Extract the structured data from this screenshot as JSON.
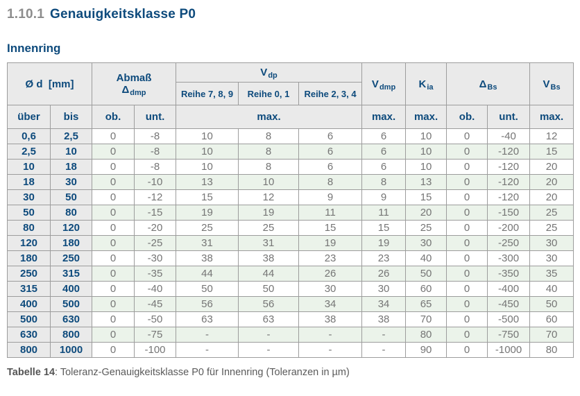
{
  "page": {
    "section_number": "1.10.1",
    "section_title": "Genauigkeitsklasse P0",
    "subtitle": "Innenring",
    "caption_label": "Tabelle 14",
    "caption_rest": ": Toleranz-Genauigkeitsklasse P0 für Innenring (Toleranzen in µm)"
  },
  "colors": {
    "heading_blue": "#0d4a7c",
    "heading_number_gray": "#8c8c8c",
    "header_bg": "#eaeaea",
    "row_alt_green": "#ebf3ea",
    "border_gray": "#9c9c9c",
    "data_text_gray": "#757575",
    "caption_gray": "#5a5a5a"
  },
  "table": {
    "header": {
      "diameter": {
        "label": "Ø d",
        "unit": "[mm]"
      },
      "abmass": {
        "line1": "Abmaß",
        "sym": "Δ",
        "sub": "dmp"
      },
      "vdp": {
        "sym": "V",
        "sub": "dp"
      },
      "reihe": [
        "Reihe 7, 8, 9",
        "Reihe 0, 1",
        "Reihe 2, 3, 4"
      ],
      "vdmp": {
        "sym": "V",
        "sub": "dmp"
      },
      "kia": {
        "sym": "K",
        "sub": "ia"
      },
      "dbs": {
        "sym": "Δ",
        "sub": "Bs"
      },
      "vbs": {
        "sym": "V",
        "sub": "Bs"
      },
      "row2": {
        "ueber": "über",
        "bis": "bis",
        "ob1": "ob.",
        "unt1": "unt.",
        "max_vdp": "max.",
        "max_vdmp": "max.",
        "max_kia": "max.",
        "ob2": "ob.",
        "unt2": "unt.",
        "max_vbs": "max."
      }
    },
    "rows": [
      [
        "0,6",
        "2,5",
        "0",
        "-8",
        "10",
        "8",
        "6",
        "6",
        "10",
        "0",
        "-40",
        "12"
      ],
      [
        "2,5",
        "10",
        "0",
        "-8",
        "10",
        "8",
        "6",
        "6",
        "10",
        "0",
        "-120",
        "15"
      ],
      [
        "10",
        "18",
        "0",
        "-8",
        "10",
        "8",
        "6",
        "6",
        "10",
        "0",
        "-120",
        "20"
      ],
      [
        "18",
        "30",
        "0",
        "-10",
        "13",
        "10",
        "8",
        "8",
        "13",
        "0",
        "-120",
        "20"
      ],
      [
        "30",
        "50",
        "0",
        "-12",
        "15",
        "12",
        "9",
        "9",
        "15",
        "0",
        "-120",
        "20"
      ],
      [
        "50",
        "80",
        "0",
        "-15",
        "19",
        "19",
        "11",
        "11",
        "20",
        "0",
        "-150",
        "25"
      ],
      [
        "80",
        "120",
        "0",
        "-20",
        "25",
        "25",
        "15",
        "15",
        "25",
        "0",
        "-200",
        "25"
      ],
      [
        "120",
        "180",
        "0",
        "-25",
        "31",
        "31",
        "19",
        "19",
        "30",
        "0",
        "-250",
        "30"
      ],
      [
        "180",
        "250",
        "0",
        "-30",
        "38",
        "38",
        "23",
        "23",
        "40",
        "0",
        "-300",
        "30"
      ],
      [
        "250",
        "315",
        "0",
        "-35",
        "44",
        "44",
        "26",
        "26",
        "50",
        "0",
        "-350",
        "35"
      ],
      [
        "315",
        "400",
        "0",
        "-40",
        "50",
        "50",
        "30",
        "30",
        "60",
        "0",
        "-400",
        "40"
      ],
      [
        "400",
        "500",
        "0",
        "-45",
        "56",
        "56",
        "34",
        "34",
        "65",
        "0",
        "-450",
        "50"
      ],
      [
        "500",
        "630",
        "0",
        "-50",
        "63",
        "63",
        "38",
        "38",
        "70",
        "0",
        "-500",
        "60"
      ],
      [
        "630",
        "800",
        "0",
        "-75",
        "-",
        "-",
        "-",
        "-",
        "80",
        "0",
        "-750",
        "70"
      ],
      [
        "800",
        "1000",
        "0",
        "-100",
        "-",
        "-",
        "-",
        "-",
        "90",
        "0",
        "-1000",
        "80"
      ]
    ]
  }
}
